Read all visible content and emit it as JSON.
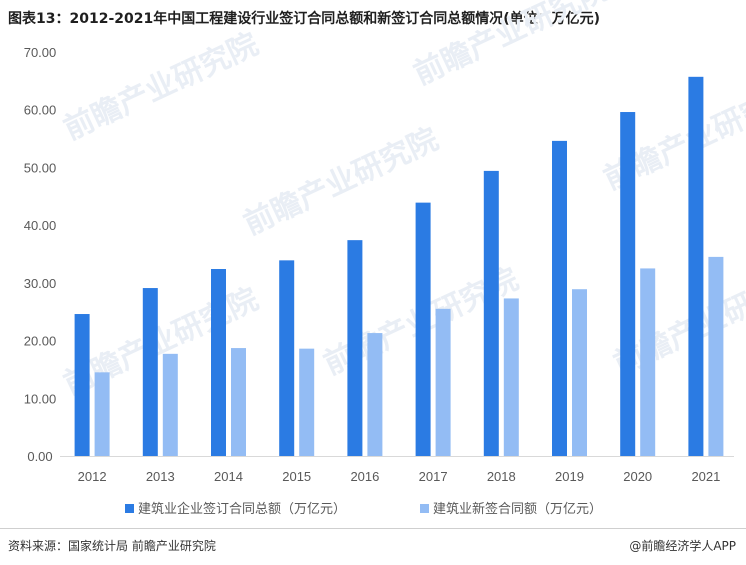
{
  "title": "图表13：2012-2021年中国工程建设行业签订合同总额和新签订合同总额情况(单位：万亿元)",
  "source": "资料来源：国家统计局 前瞻产业研究院",
  "brand": "@前瞻经济学人APP",
  "watermark": "前瞻产业研究院",
  "colors": {
    "series1": "#2b7be3",
    "series2": "#93bcf4"
  },
  "chart_data": {
    "type": "bar",
    "categories": [
      "2012",
      "2013",
      "2014",
      "2015",
      "2016",
      "2017",
      "2018",
      "2019",
      "2020",
      "2021"
    ],
    "series": [
      {
        "name": "建筑业企业签订合同总额（万亿元）",
        "values": [
          24.6,
          29.1,
          32.4,
          33.9,
          37.4,
          43.9,
          49.4,
          54.6,
          59.6,
          65.7
        ]
      },
      {
        "name": "建筑业新签合同额（万亿元）",
        "values": [
          14.5,
          17.7,
          18.7,
          18.6,
          21.3,
          25.5,
          27.3,
          28.9,
          32.5,
          34.5
        ]
      }
    ],
    "ylim": [
      0,
      70
    ],
    "yticks": [
      "0.00",
      "10.00",
      "20.00",
      "30.00",
      "40.00",
      "50.00",
      "60.00",
      "70.00"
    ],
    "title": "图表13：2012-2021年中国工程建设行业签订合同总额和新签订合同总额情况(单位：万亿元)",
    "xlabel": "",
    "ylabel": "",
    "grid": false,
    "legend": "bottom"
  }
}
